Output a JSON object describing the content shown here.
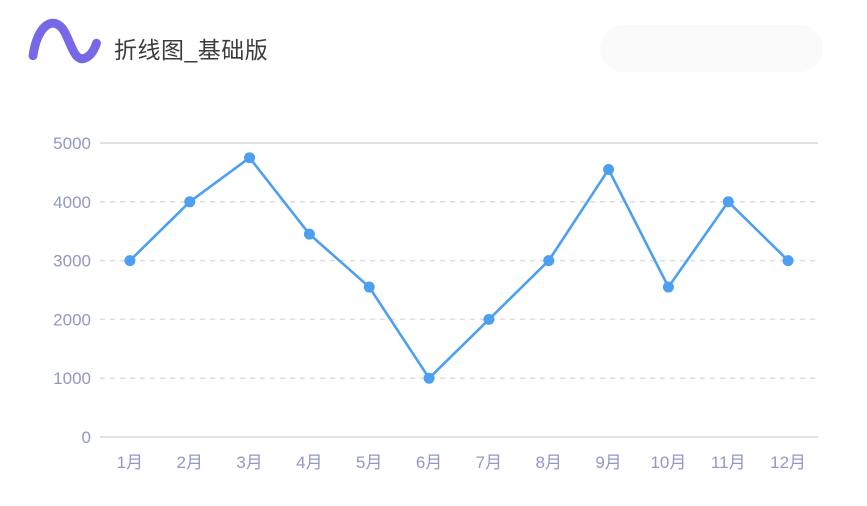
{
  "header": {
    "title": "折线图_基础版",
    "logo": "sine-wave"
  },
  "chart_data": {
    "type": "line",
    "title": "折线图_基础版",
    "categories": [
      "1月",
      "2月",
      "3月",
      "4月",
      "5月",
      "6月",
      "7月",
      "8月",
      "9月",
      "10月",
      "11月",
      "12月"
    ],
    "series": [
      {
        "name": "折线图_基础版",
        "values": [
          3000,
          4000,
          4750,
          3450,
          2550,
          1000,
          2000,
          3000,
          4550,
          2550,
          4000,
          3000
        ]
      }
    ],
    "xlabel": "",
    "ylabel": "",
    "ylim": [
      0,
      5000
    ],
    "yticks": [
      0,
      1000,
      2000,
      3000,
      4000,
      5000
    ],
    "grid": "horizontal, dashed inner lines, solid top and bottom lines",
    "legend_position": "none",
    "colors": {
      "line": "#4c9ff1",
      "point": "#4c9ff1",
      "axis_label": "#9398c3",
      "grid_solid": "#d6d7db",
      "grid_dashed": "#dddddd",
      "title_text": "#3c3c3c",
      "logo": "#7668e6",
      "background": "#ffffff",
      "pill": "#fafafa"
    }
  }
}
